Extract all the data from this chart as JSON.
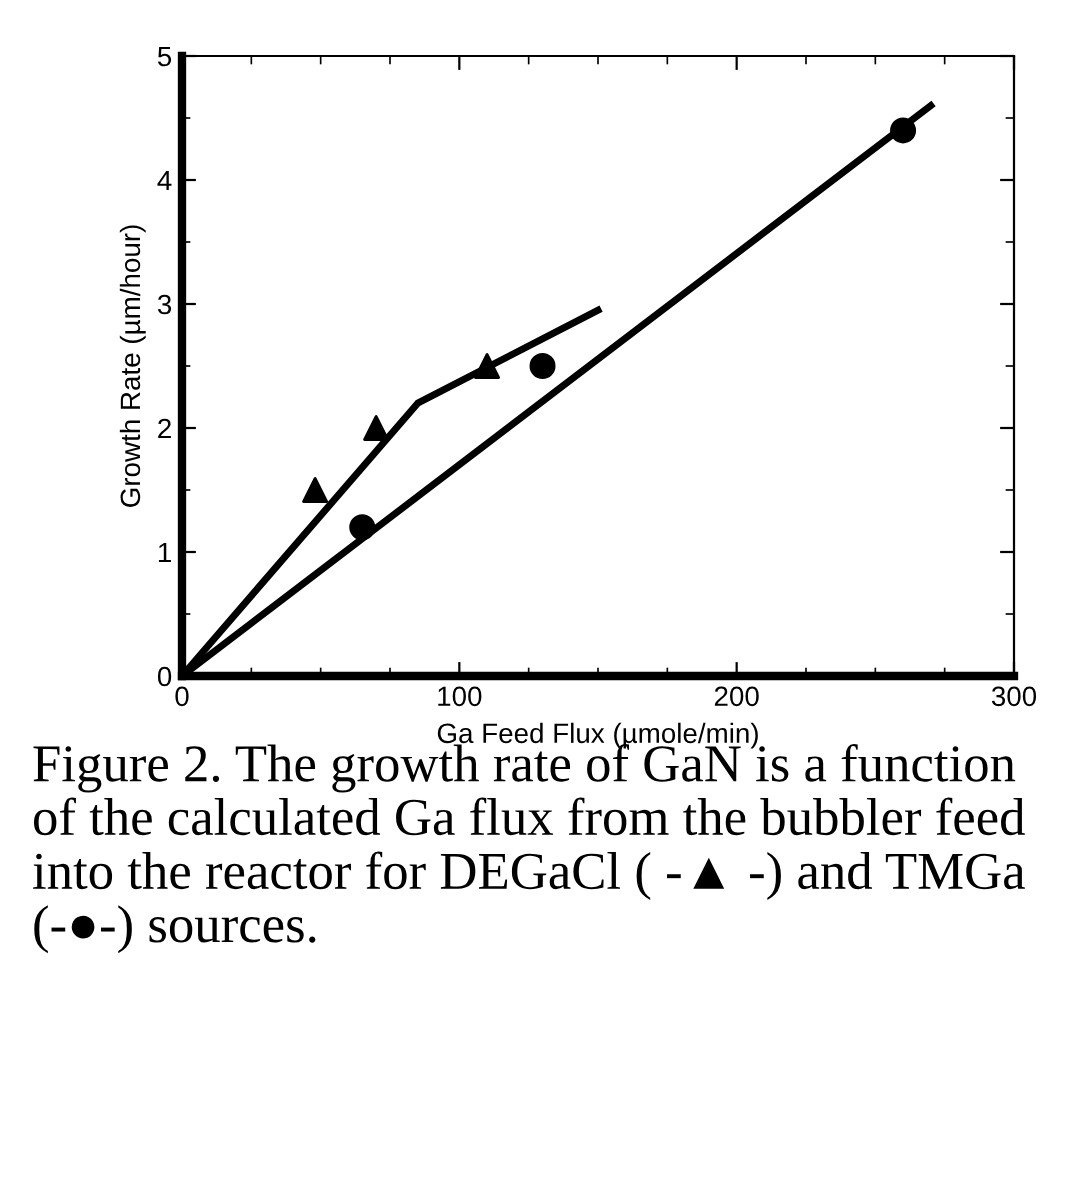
{
  "chart_data": {
    "type": "scatter",
    "xlabel": "Ga Feed Flux (µmole/min)",
    "ylabel": "Growth Rate (µm/hour)",
    "xlim": [
      0,
      300
    ],
    "ylim": [
      0,
      5
    ],
    "xticks": [
      0,
      100,
      200,
      300
    ],
    "yticks": [
      0,
      1,
      2,
      3,
      4,
      5
    ],
    "grid": false,
    "legend": false,
    "series": [
      {
        "marker": "triangle",
        "color": "#000000",
        "x": [
          48,
          70,
          110
        ],
        "values": [
          1.5,
          2.0,
          2.5
        ]
      },
      {
        "marker": "circle",
        "color": "#000000",
        "x": [
          65,
          130,
          260
        ],
        "values": [
          1.2,
          2.5,
          4.4
        ]
      },
      {
        "type": "line",
        "marker": "none",
        "color": "#000000",
        "line_style": "solid",
        "x": [
          0,
          85,
          150
        ],
        "values": [
          0,
          2.2,
          2.95
        ]
      },
      {
        "type": "line",
        "marker": "none",
        "color": "#000000",
        "line_style": "solid",
        "x": [
          0,
          270
        ],
        "values": [
          0,
          4.6
        ]
      }
    ],
    "annotations": [
      "Figure 2. The growth rate of GaN is a function of the calculated Ga flux from the bubbler feed into the reactor for DEGaCl ( -▲ -) and TMGa (-●-) sources."
    ]
  }
}
